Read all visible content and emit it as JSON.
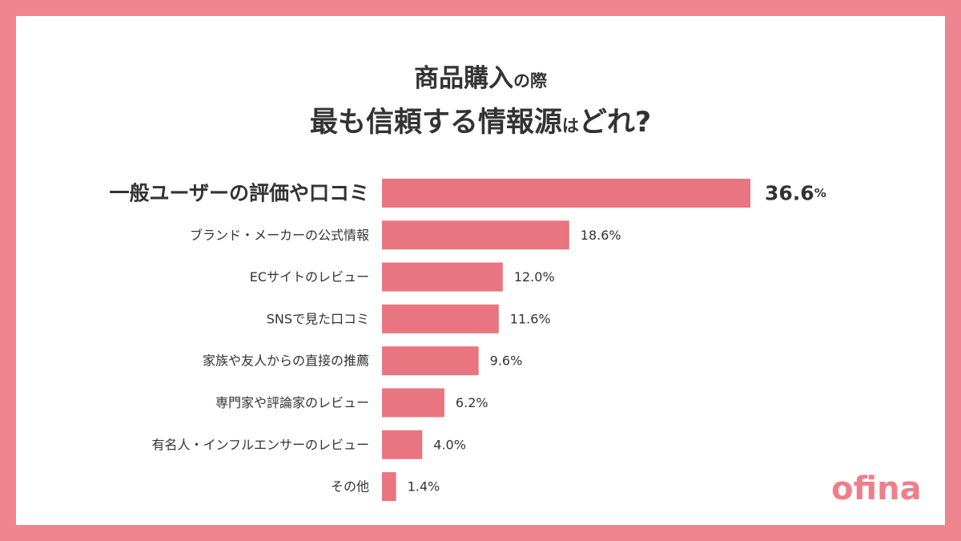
{
  "title": {
    "line1_main": "商品購入",
    "line1_small": "の際",
    "line2_main": "最も信頼する情報源",
    "line2_small": "は",
    "line2_end": "どれ?"
  },
  "chart_data": {
    "type": "bar",
    "orientation": "horizontal",
    "categories": [
      "一般ユーザーの評価や口コミ",
      "ブランド・メーカーの公式情報",
      "ECサイトのレビュー",
      "SNSで見た口コミ",
      "家族や友人からの直接の推薦",
      "専門家や評論家のレビュー",
      "有名人・インフルエンサーのレビュー",
      "その他"
    ],
    "values": [
      36.6,
      18.6,
      12.0,
      11.6,
      9.6,
      6.2,
      4.0,
      1.4
    ],
    "value_labels": [
      "36.6",
      "18.6%",
      "12.0%",
      "11.6%",
      "9.6%",
      "6.2%",
      "4.0%",
      "1.4%"
    ],
    "highlight_unit": "%",
    "highlight_index": 0,
    "bar_color": "#e87580",
    "text_color": "#333333"
  },
  "brand": {
    "logo_text": "ofina",
    "color": "#ee7f8a"
  }
}
